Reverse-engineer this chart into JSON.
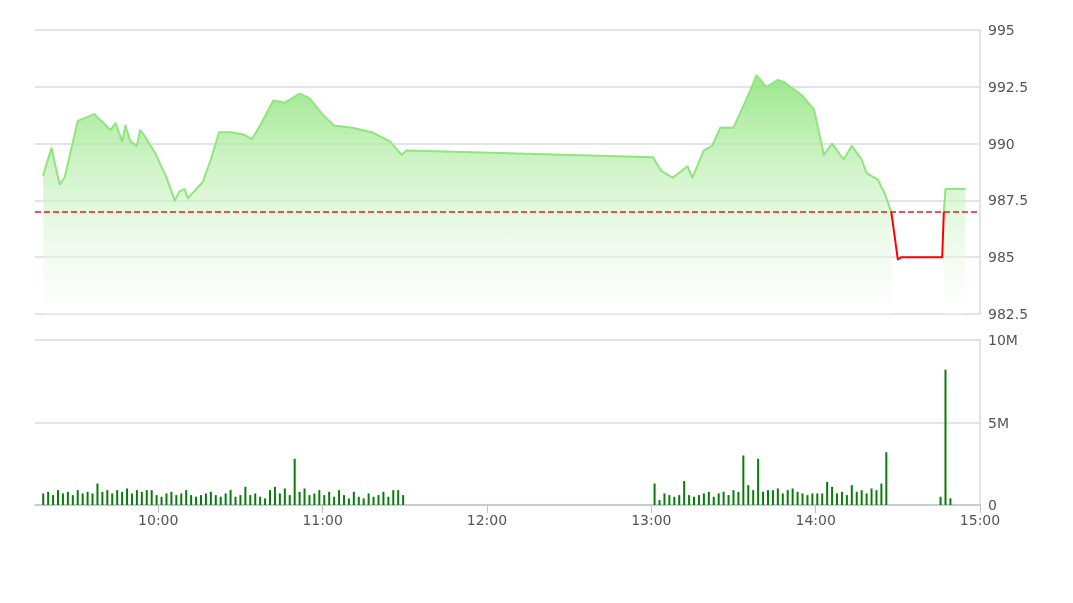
{
  "chart_data": [
    {
      "type": "area",
      "xlim": [
        9.25,
        15
      ],
      "ylim": [
        982.5,
        995
      ],
      "yticks": [
        982.5,
        985,
        987.5,
        990,
        992.5,
        995
      ],
      "grid": "y",
      "tick_labels": "y",
      "ref_lines": [
        {
          "axis": "y",
          "value": 987,
          "color": "#e02020",
          "line_style": "dashed"
        }
      ],
      "series": [
        {
          "color": "#90e57e",
          "x": [
            9.3,
            9.35,
            9.4,
            9.43,
            9.51,
            9.61,
            9.71,
            9.74,
            9.78,
            9.8,
            9.83,
            9.87,
            9.89,
            9.92,
            9.98,
            10.05,
            10.1,
            10.13,
            10.16,
            10.18,
            10.27,
            10.32,
            10.37,
            10.44,
            10.52,
            10.57,
            10.62,
            10.7,
            10.77,
            10.86,
            10.92,
            11.01,
            11.07,
            11.18,
            11.3,
            11.41,
            11.48,
            11.51,
            13.01,
            13.06,
            13.13,
            13.22,
            13.25,
            13.32,
            13.37,
            13.42,
            13.5,
            13.6,
            13.64,
            13.7,
            13.77,
            13.81,
            13.92,
            13.99,
            14.05,
            14.1,
            14.17,
            14.22,
            14.28,
            14.31,
            14.38,
            14.42,
            14.46,
            14.6,
            14.78,
            14.79,
            14.91
          ],
          "values": [
            988.6,
            989.8,
            988.2,
            988.5,
            991.0,
            991.3,
            990.6,
            990.9,
            990.1,
            990.8,
            990.1,
            989.9,
            990.6,
            990.3,
            989.6,
            988.5,
            987.5,
            987.9,
            988.0,
            987.6,
            988.3,
            989.3,
            990.5,
            990.5,
            990.4,
            990.2,
            990.8,
            991.9,
            991.8,
            992.2,
            992.0,
            991.2,
            990.8,
            990.7,
            990.5,
            990.1,
            989.5,
            989.7,
            989.4,
            988.8,
            988.5,
            989.0,
            988.5,
            989.7,
            989.9,
            990.7,
            990.7,
            992.3,
            993.0,
            992.5,
            992.8,
            992.7,
            992.1,
            991.5,
            989.5,
            990.0,
            989.3,
            989.9,
            989.3,
            988.7,
            988.4,
            987.8,
            987.0,
            null,
            987.0,
            988.0,
            988.0
          ]
        },
        {
          "type": "line",
          "color": "#ff0000",
          "x": [
            14.46,
            14.5,
            14.52,
            14.77,
            14.78
          ],
          "values": [
            987.0,
            984.9,
            985.0,
            985.0,
            987.0
          ]
        }
      ]
    },
    {
      "type": "bar",
      "xlim": [
        9.25,
        15
      ],
      "xticks": [
        {
          "value": 10,
          "label": "10:00"
        },
        {
          "value": 11,
          "label": "11:00"
        },
        {
          "value": 12,
          "label": "12:00"
        },
        {
          "value": 13,
          "label": "13:00"
        },
        {
          "value": 14,
          "label": "14:00"
        },
        {
          "value": 15,
          "label": "15:00"
        }
      ],
      "ylim": [
        0,
        10
      ],
      "yticks": [
        0,
        {
          "value": 5,
          "label": "5M"
        },
        {
          "value": 10,
          "label": "10M"
        }
      ],
      "grid": "y",
      "series": [
        {
          "color": "#0a7a0a",
          "x": [
            9.3,
            9.33,
            9.36,
            9.39,
            9.42,
            9.45,
            9.48,
            9.51,
            9.54,
            9.57,
            9.6,
            9.63,
            9.66,
            9.69,
            9.72,
            9.75,
            9.78,
            9.81,
            9.84,
            9.87,
            9.9,
            9.93,
            9.96,
            9.99,
            10.02,
            10.05,
            10.08,
            10.11,
            10.14,
            10.17,
            10.2,
            10.23,
            10.26,
            10.29,
            10.32,
            10.35,
            10.38,
            10.41,
            10.44,
            10.47,
            10.5,
            10.53,
            10.56,
            10.59,
            10.62,
            10.65,
            10.68,
            10.71,
            10.74,
            10.77,
            10.8,
            10.83,
            10.86,
            10.89,
            10.92,
            10.95,
            10.98,
            11.01,
            11.04,
            11.07,
            11.1,
            11.13,
            11.16,
            11.19,
            11.22,
            11.25,
            11.28,
            11.31,
            11.34,
            11.37,
            11.4,
            11.43,
            11.46,
            11.49,
            13.02,
            13.05,
            13.08,
            13.11,
            13.14,
            13.17,
            13.2,
            13.23,
            13.26,
            13.29,
            13.32,
            13.35,
            13.38,
            13.41,
            13.44,
            13.47,
            13.5,
            13.53,
            13.56,
            13.59,
            13.62,
            13.65,
            13.68,
            13.71,
            13.74,
            13.77,
            13.8,
            13.83,
            13.86,
            13.89,
            13.92,
            13.95,
            13.98,
            14.01,
            14.04,
            14.07,
            14.1,
            14.13,
            14.16,
            14.19,
            14.22,
            14.25,
            14.28,
            14.31,
            14.34,
            14.37,
            14.4,
            14.43,
            14.76,
            14.79,
            14.82
          ],
          "values": [
            0.7,
            0.8,
            0.6,
            0.9,
            0.7,
            0.8,
            0.6,
            0.9,
            0.7,
            0.8,
            0.7,
            1.3,
            0.8,
            0.9,
            0.7,
            0.9,
            0.8,
            1.0,
            0.7,
            0.9,
            0.8,
            0.9,
            0.9,
            0.6,
            0.5,
            0.7,
            0.8,
            0.6,
            0.7,
            0.9,
            0.6,
            0.5,
            0.6,
            0.7,
            0.8,
            0.6,
            0.5,
            0.7,
            0.9,
            0.5,
            0.6,
            1.1,
            0.6,
            0.7,
            0.5,
            0.4,
            0.9,
            1.1,
            0.7,
            1.0,
            0.6,
            2.8,
            0.8,
            1.0,
            0.6,
            0.7,
            0.9,
            0.6,
            0.8,
            0.5,
            0.9,
            0.6,
            0.4,
            0.8,
            0.5,
            0.4,
            0.7,
            0.5,
            0.6,
            0.8,
            0.5,
            0.9,
            0.9,
            0.6,
            1.3,
            0.3,
            0.7,
            0.6,
            0.5,
            0.6,
            1.45,
            0.6,
            0.5,
            0.6,
            0.7,
            0.8,
            0.5,
            0.7,
            0.8,
            0.6,
            0.9,
            0.8,
            3.0,
            1.2,
            0.9,
            2.8,
            0.8,
            0.9,
            0.9,
            1.0,
            0.7,
            0.9,
            1.0,
            0.8,
            0.7,
            0.6,
            0.7,
            0.7,
            0.7,
            1.4,
            1.1,
            0.7,
            0.8,
            0.6,
            1.2,
            0.8,
            0.9,
            0.7,
            1.0,
            0.9,
            1.3,
            3.2,
            0.5,
            8.2,
            0.4
          ]
        }
      ]
    }
  ]
}
